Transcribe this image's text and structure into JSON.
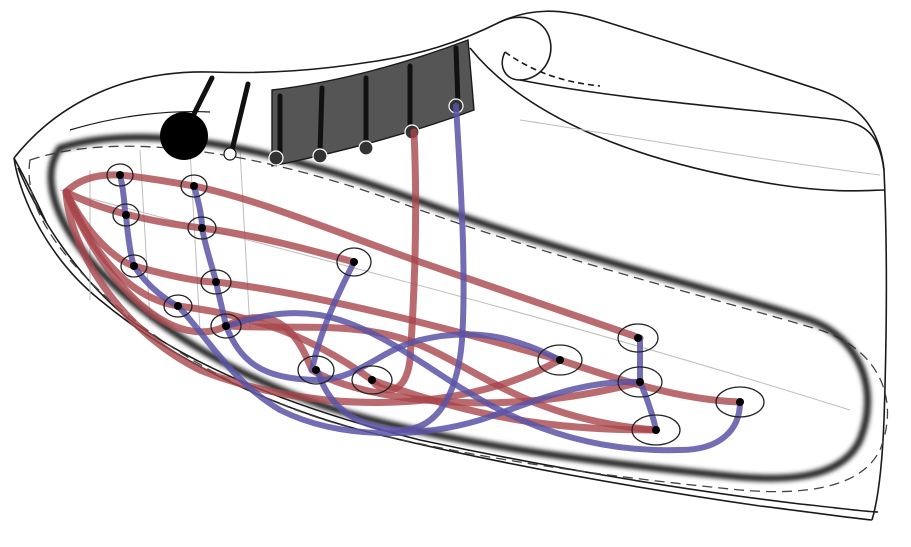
{
  "diagram": {
    "subject": "shoe-sole-sensor-layout",
    "colors": {
      "outline": "#1a1a1a",
      "sole_ring": "#2a2a2a",
      "red_trace": "#a8464b",
      "blue_trace": "#5a54a6",
      "band_fill": "#555555",
      "node": "#000000"
    }
  }
}
